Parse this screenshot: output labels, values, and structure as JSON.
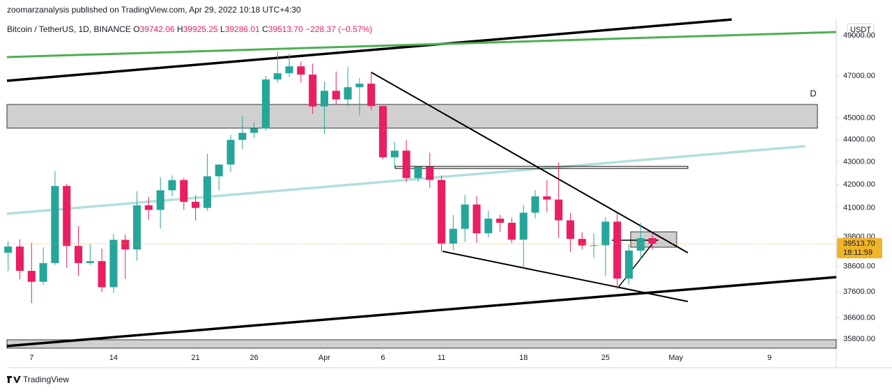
{
  "header": {
    "publisher": "zoomarzanalysis published on TradingView.com, Apr 29, 2022 10:18 UTC+4:30",
    "symbol": "Bitcoin / TetherUS, 1D, BINANCE",
    "ohlc": {
      "o_label": "O",
      "o": "39742.06",
      "h_label": "H",
      "h": "39925.25",
      "l_label": "L",
      "l": "39286.01",
      "c_label": "C",
      "c": "39513.70",
      "change": "−228.37 (−0.57%)"
    }
  },
  "currency": "USDT",
  "zone_label": "D",
  "price_label": {
    "price": "39513.70",
    "countdown": "18:11:59"
  },
  "footer": "TradingView",
  "chart_data": {
    "type": "candlestick",
    "log_scale": true,
    "up_color": "#26a69a",
    "down_color": "#e91e63",
    "x": [
      64,
      65,
      66,
      67,
      68,
      69,
      70,
      71,
      72,
      73,
      74,
      75,
      76,
      77,
      78,
      79,
      80,
      81,
      82,
      83,
      84,
      85,
      86,
      87,
      88,
      89,
      90,
      91,
      92,
      93,
      94,
      95,
      96,
      97,
      98,
      99,
      100,
      101,
      102,
      103,
      104,
      105,
      106,
      107,
      108,
      109,
      110,
      111,
      112,
      113,
      114,
      115,
      116,
      117,
      118,
      119
    ],
    "open": [
      39148,
      39397,
      38420,
      37988,
      38730,
      41942,
      39422,
      38730,
      38807,
      37777,
      39671,
      39280,
      41114,
      40917,
      41757,
      42201,
      41262,
      41002,
      42364,
      42882,
      43991,
      44313,
      44511,
      46827,
      47128,
      47465,
      47062,
      45538,
      46281,
      45868,
      46453,
      46622,
      45555,
      43206,
      43503,
      42287,
      42782,
      42207,
      39521,
      40127,
      41148,
      39942,
      40552,
      40378,
      39678,
      40801,
      41494,
      41358,
      40480,
      39709,
      39441,
      39450,
      40426,
      38112,
      39235,
      39742
    ],
    "high": [
      39613,
      39693,
      39547,
      39362,
      42594,
      42039,
      40236,
      39486,
      39310,
      39915,
      39887,
      41718,
      41478,
      42325,
      42400,
      42296,
      41544,
      43361,
      42893,
      44220,
      45094,
      44792,
      46999,
      48190,
      48096,
      47700,
      47600,
      46720,
      47213,
      47444,
      46890,
      47200,
      45555,
      43900,
      43970,
      42800,
      43410,
      42414,
      40699,
      41561,
      41500,
      40870,
      40709,
      40595,
      41116,
      41760,
      42199,
      42976,
      40795,
      39980,
      39940,
      40617,
      40797,
      39474,
      40372,
      39925
    ],
    "low": [
      38407,
      38088,
      37155,
      37867,
      38656,
      38539,
      38223,
      38660,
      37578,
      37555,
      38098,
      38828,
      40500,
      40135,
      41499,
      40911,
      40467,
      40875,
      41751,
      42560,
      43579,
      44071,
      44422,
      46665,
      46950,
      46670,
      45200,
      44255,
      45620,
      45530,
      45118,
      45353,
      43121,
      42727,
      42107,
      42125,
      41869,
      39200,
      39254,
      39588,
      39551,
      39766,
      39991,
      39546,
      38536,
      40571,
      40820,
      39751,
      39177,
      39285,
      38929,
      38200,
      37702,
      37884,
      38881,
      39286
    ],
    "close": [
      39397,
      38420,
      37988,
      38730,
      41942,
      39422,
      38730,
      38807,
      37777,
      39671,
      39280,
      41114,
      40917,
      41757,
      42201,
      41262,
      41002,
      42364,
      42882,
      43991,
      44313,
      44511,
      46827,
      47128,
      47465,
      47062,
      45538,
      46281,
      45868,
      46453,
      46622,
      45555,
      43206,
      43503,
      42287,
      42782,
      42207,
      39521,
      40127,
      41148,
      39942,
      40552,
      40378,
      39678,
      40801,
      41494,
      41358,
      40480,
      39709,
      39441,
      39450,
      40426,
      38112,
      39235,
      39742,
      39513.7
    ],
    "xlim": [
      63.9,
      134.7
    ],
    "xticks": [
      {
        "value": 66,
        "label": "7"
      },
      {
        "value": 73,
        "label": "14"
      },
      {
        "value": 80,
        "label": "21"
      },
      {
        "value": 85,
        "label": "26"
      },
      {
        "value": 91,
        "label": "Apr"
      },
      {
        "value": 96,
        "label": "6"
      },
      {
        "value": 101,
        "label": "11"
      },
      {
        "value": 108,
        "label": "18"
      },
      {
        "value": 115,
        "label": "25"
      },
      {
        "value": 121,
        "label": "May"
      },
      {
        "value": 129,
        "label": "9"
      }
    ],
    "ylim": [
      35470,
      49820
    ],
    "yticks": [
      {
        "value": 35800,
        "label": "35800.00"
      },
      {
        "value": 36600,
        "label": "36600.00"
      },
      {
        "value": 37600,
        "label": "37600.00"
      },
      {
        "value": 38600,
        "label": "38600.00"
      },
      {
        "value": 39800,
        "label": "39800.00"
      },
      {
        "value": 41000,
        "label": "41000.00"
      },
      {
        "value": 42000,
        "label": "42000.00"
      },
      {
        "value": 43000,
        "label": "43000.00"
      },
      {
        "value": 44000,
        "label": "44000.00"
      },
      {
        "value": 45000,
        "label": "45000.00"
      },
      {
        "value": 47000,
        "label": "47000.00"
      },
      {
        "value": 49000,
        "label": "49000.00"
      }
    ]
  }
}
